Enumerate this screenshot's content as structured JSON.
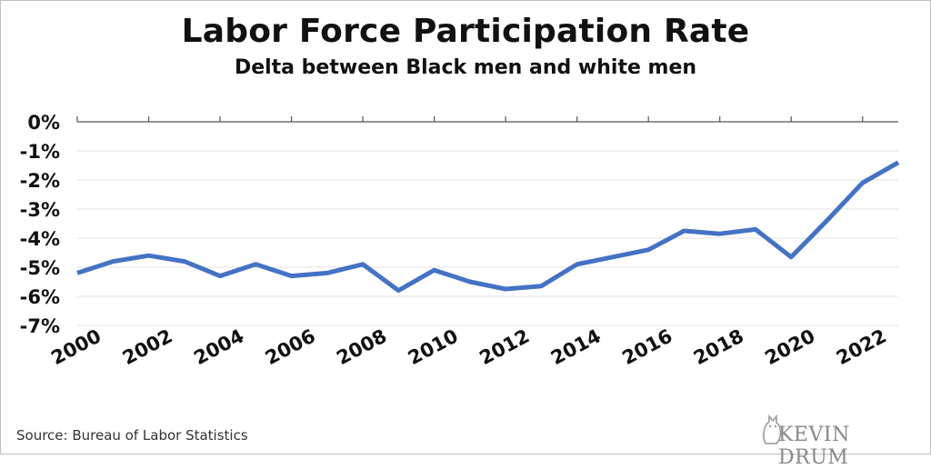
{
  "chart_data": {
    "type": "line",
    "title": "Labor Force Participation Rate",
    "subtitle": "Delta between Black men and white men",
    "x": [
      2000,
      2001,
      2002,
      2003,
      2004,
      2005,
      2006,
      2007,
      2008,
      2009,
      2010,
      2011,
      2012,
      2013,
      2014,
      2015,
      2016,
      2017,
      2018,
      2019,
      2020,
      2021,
      2022,
      2023
    ],
    "series": [
      {
        "values": [
          -5.2,
          -4.8,
          -4.6,
          -4.8,
          -5.3,
          -4.9,
          -5.3,
          -5.2,
          -4.9,
          -5.8,
          -5.1,
          -5.5,
          -5.75,
          -5.65,
          -4.9,
          -4.65,
          -4.4,
          -3.75,
          -3.85,
          -3.7,
          -4.65,
          -3.4,
          -2.1,
          -1.4
        ]
      }
    ],
    "xticks": [
      "2000",
      "2002",
      "2004",
      "2006",
      "2008",
      "2010",
      "2012",
      "2014",
      "2016",
      "2018",
      "2020",
      "2022"
    ],
    "yticks": [
      "0%",
      "-1%",
      "-2%",
      "-3%",
      "-4%",
      "-5%",
      "-6%",
      "-7%"
    ],
    "ylim": [
      -7,
      0
    ],
    "xlim": [
      2000,
      2023
    ],
    "grid": true,
    "line_color": "#4472c4"
  },
  "footer": {
    "source": "Source: Bureau of Labor Statistics",
    "brand": "KEVIN DRUM"
  }
}
